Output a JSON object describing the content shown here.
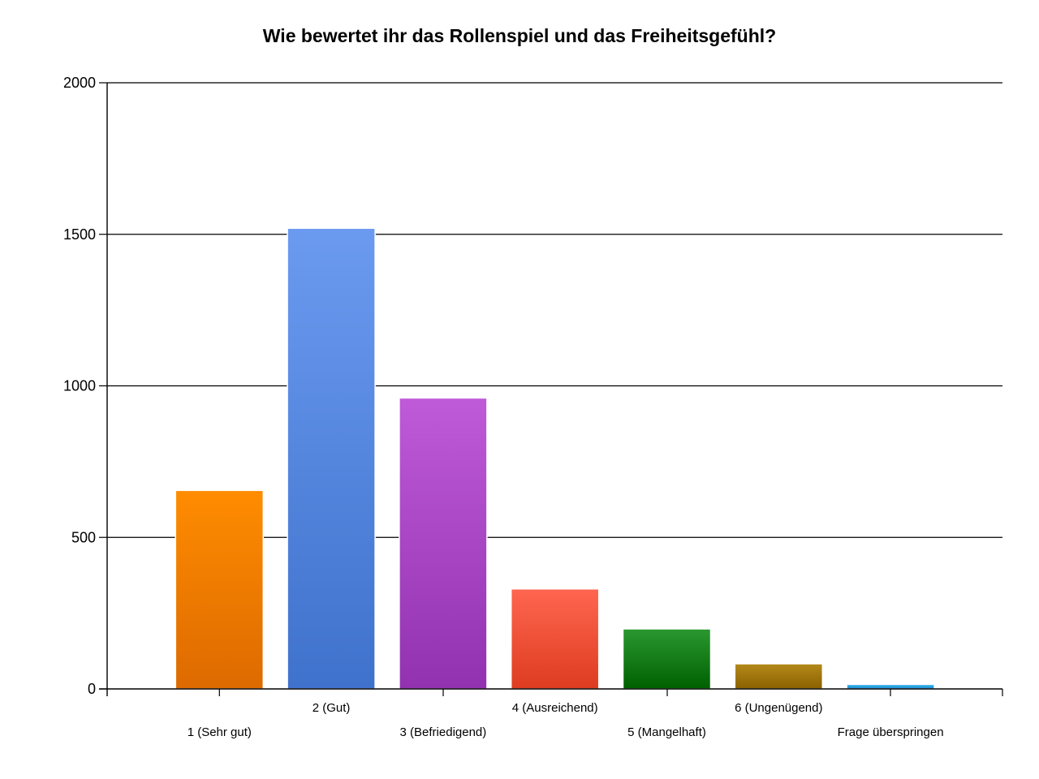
{
  "chart_data": {
    "type": "bar",
    "title": "Wie bewertet ihr das Rollenspiel und das Freiheitsgefühl?",
    "xlabel": "",
    "ylabel": "",
    "ylim": [
      0,
      2000
    ],
    "yticks": [
      0,
      500,
      1000,
      1500,
      2000
    ],
    "ytick_labels": [
      "0",
      "500",
      "1000",
      "1500",
      "2000"
    ],
    "grid": true,
    "legend": "none",
    "categories": [
      "1 (Sehr gut)",
      "2 (Gut)",
      "3 (Befriedigend)",
      "4 (Ausreichend)",
      "5 (Mangelhaft)",
      "6 (Ungenügend)",
      "Frage überspringen"
    ],
    "values": [
      655,
      1520,
      960,
      330,
      198,
      83,
      15
    ],
    "colors": [
      [
        "#ff8c00",
        "#dd6a00"
      ],
      [
        "#6b9af0",
        "#3f72cc"
      ],
      [
        "#bf5ad8",
        "#9232b0"
      ],
      [
        "#ff6650",
        "#dd3c20"
      ],
      [
        "#2a9830",
        "#006000"
      ],
      [
        "#b58a1a",
        "#8a6000"
      ],
      [
        "#3ab6ee",
        "#1a8ad0"
      ]
    ]
  }
}
